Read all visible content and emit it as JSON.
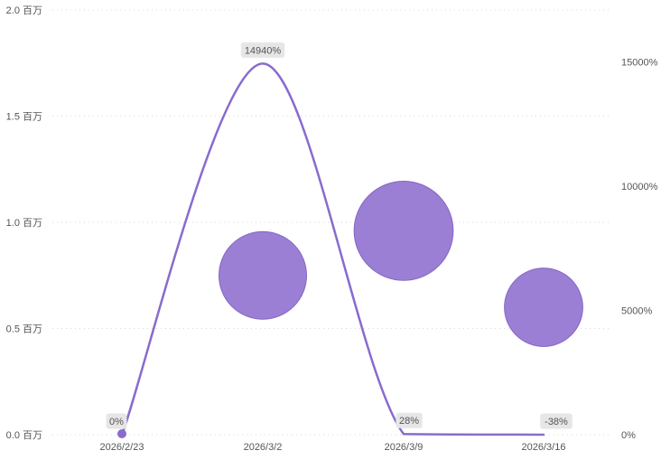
{
  "chart_data": {
    "type": "line",
    "categories": [
      "2026/2/23",
      "2026/3/2",
      "2026/3/9",
      "2026/3/16"
    ],
    "left_axis": {
      "ticks": [
        0,
        0.5,
        1.0,
        1.5,
        2.0
      ],
      "tick_labels": [
        "0.0 百万",
        "0.5 百万",
        "1.0 百万",
        "1.5 百万",
        "2.0 百万"
      ],
      "ylim": [
        0,
        2.0
      ]
    },
    "right_axis": {
      "ticks": [
        0,
        5000,
        10000,
        15000
      ],
      "tick_labels": [
        "0%",
        "5000%",
        "10000%",
        "15000%"
      ],
      "ylim": [
        0,
        17100
      ]
    },
    "series": [
      {
        "kind": "bubble",
        "axis": "left",
        "values": [
          0,
          0.75,
          0.96,
          0.6
        ],
        "sizes": [
          0,
          0.75,
          0.96,
          0.6
        ]
      },
      {
        "kind": "line",
        "axis": "right",
        "values": [
          0,
          14940,
          28,
          -38
        ],
        "data_labels": [
          "0%",
          "14940%",
          "28%",
          "-38%"
        ]
      }
    ],
    "grid": true,
    "colors": {
      "bubble": "#9b7fd4",
      "bubble_stroke": "#8466c4",
      "line": "#8a6bcd",
      "grid": "#d9d9d9",
      "text": "#555555",
      "label_bg": "#e6e6e6"
    }
  }
}
